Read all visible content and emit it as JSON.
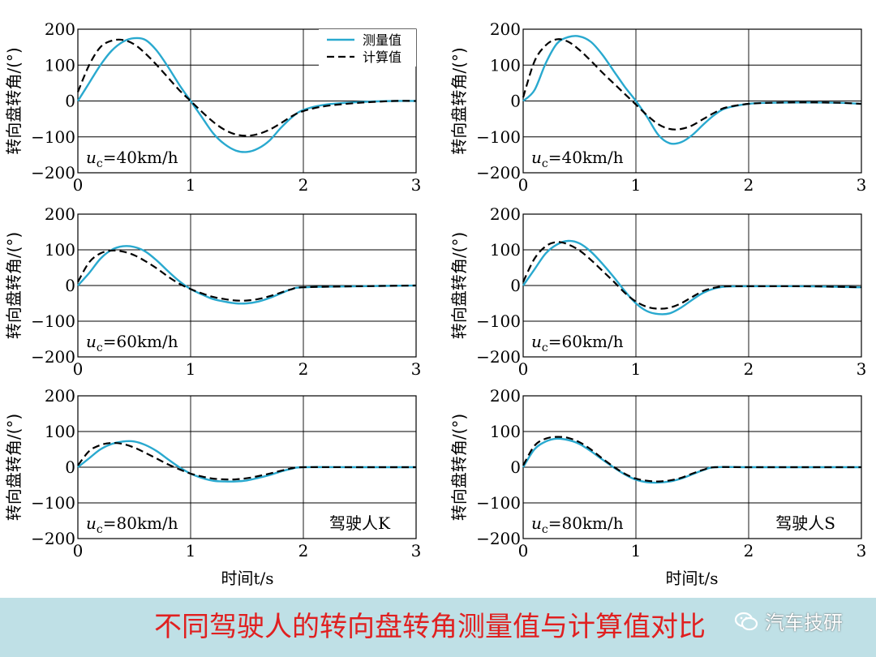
{
  "chart_data": [
    {
      "type": "line",
      "panel": "K-40",
      "ylabel": "转向盘转角/(°)",
      "annotation": "uc=40km/h",
      "speed_label": "=40km/h",
      "xlim": [
        0,
        3
      ],
      "ylim": [
        -200,
        200
      ],
      "xticks": [
        "0",
        "1",
        "2",
        "3"
      ],
      "yticks": [
        "200",
        "100",
        "0",
        "−100",
        "−200"
      ],
      "series": [
        {
          "name": "测量值",
          "style": "solid",
          "x": [
            0,
            0.1,
            0.2,
            0.3,
            0.4,
            0.5,
            0.6,
            0.7,
            0.8,
            0.9,
            1.0,
            1.1,
            1.2,
            1.3,
            1.4,
            1.5,
            1.6,
            1.7,
            1.8,
            1.9,
            2.0,
            2.2,
            2.5,
            2.8,
            3.0
          ],
          "y": [
            0,
            50,
            100,
            140,
            165,
            175,
            170,
            140,
            95,
            45,
            0,
            -45,
            -90,
            -120,
            -138,
            -142,
            -132,
            -110,
            -75,
            -45,
            -25,
            -10,
            -3,
            0,
            0
          ]
        },
        {
          "name": "计算值",
          "style": "dashed",
          "x": [
            0,
            0.1,
            0.2,
            0.3,
            0.4,
            0.5,
            0.6,
            0.7,
            0.8,
            0.9,
            1.0,
            1.1,
            1.2,
            1.3,
            1.4,
            1.5,
            1.6,
            1.7,
            1.8,
            1.9,
            2.0,
            2.2,
            2.5,
            2.8,
            3.0
          ],
          "y": [
            25,
            100,
            150,
            168,
            170,
            158,
            132,
            100,
            65,
            30,
            0,
            -30,
            -58,
            -80,
            -93,
            -97,
            -92,
            -80,
            -62,
            -42,
            -28,
            -14,
            -5,
            0,
            0
          ]
        }
      ],
      "legend": [
        "测量值",
        "计算值"
      ],
      "legend_position": "top-right"
    },
    {
      "type": "line",
      "panel": "S-40",
      "ylabel": "转向盘转角/(°)",
      "annotation": "uc=40km/h",
      "speed_label": "=40km/h",
      "xlim": [
        0,
        3
      ],
      "ylim": [
        -200,
        200
      ],
      "xticks": [
        "0",
        "1",
        "2",
        "3"
      ],
      "yticks": [
        "200",
        "100",
        "0",
        "−100",
        "−200"
      ],
      "series": [
        {
          "name": "测量值",
          "style": "solid",
          "x": [
            0,
            0.1,
            0.2,
            0.3,
            0.4,
            0.5,
            0.6,
            0.7,
            0.8,
            0.9,
            1.0,
            1.1,
            1.2,
            1.3,
            1.4,
            1.5,
            1.6,
            1.7,
            1.8,
            2.0,
            2.2,
            2.5,
            2.8,
            3.0
          ],
          "y": [
            0,
            30,
            105,
            160,
            178,
            180,
            165,
            130,
            85,
            40,
            0,
            -45,
            -95,
            -118,
            -115,
            -95,
            -65,
            -38,
            -20,
            -8,
            -5,
            -4,
            -5,
            -8
          ]
        },
        {
          "name": "计算值",
          "style": "dashed",
          "x": [
            0,
            0.1,
            0.2,
            0.3,
            0.4,
            0.5,
            0.6,
            0.7,
            0.8,
            0.9,
            1.0,
            1.1,
            1.2,
            1.3,
            1.4,
            1.5,
            1.6,
            1.7,
            1.8,
            2.0,
            2.2,
            2.5,
            2.8,
            3.0
          ],
          "y": [
            10,
            110,
            155,
            172,
            165,
            142,
            112,
            80,
            50,
            20,
            -10,
            -40,
            -65,
            -78,
            -78,
            -68,
            -50,
            -32,
            -18,
            -8,
            -5,
            -4,
            -5,
            -8
          ]
        }
      ]
    },
    {
      "type": "line",
      "panel": "K-60",
      "ylabel": "转向盘转角/(°)",
      "annotation": "uc=60km/h",
      "speed_label": "=60km/h",
      "xlim": [
        0,
        3
      ],
      "ylim": [
        -200,
        200
      ],
      "xticks": [
        "0",
        "1",
        "2",
        "3"
      ],
      "yticks": [
        "200",
        "100",
        "0",
        "−100",
        "−200"
      ],
      "series": [
        {
          "name": "测量值",
          "style": "solid",
          "x": [
            0,
            0.1,
            0.2,
            0.3,
            0.4,
            0.5,
            0.6,
            0.7,
            0.8,
            0.9,
            1.0,
            1.1,
            1.2,
            1.3,
            1.4,
            1.5,
            1.6,
            1.7,
            1.8,
            1.9,
            2.0,
            2.5,
            3.0
          ],
          "y": [
            0,
            35,
            75,
            100,
            110,
            108,
            95,
            70,
            40,
            12,
            -10,
            -25,
            -38,
            -45,
            -50,
            -50,
            -45,
            -35,
            -22,
            -10,
            -5,
            -2,
            0
          ]
        },
        {
          "name": "计算值",
          "style": "dashed",
          "x": [
            0,
            0.1,
            0.2,
            0.3,
            0.4,
            0.5,
            0.6,
            0.7,
            0.8,
            0.9,
            1.0,
            1.1,
            1.2,
            1.3,
            1.4,
            1.5,
            1.6,
            1.7,
            1.8,
            1.9,
            2.0,
            2.5,
            3.0
          ],
          "y": [
            10,
            65,
            90,
            98,
            95,
            85,
            68,
            48,
            25,
            5,
            -10,
            -22,
            -32,
            -38,
            -42,
            -42,
            -38,
            -30,
            -20,
            -10,
            -5,
            -2,
            0
          ]
        }
      ]
    },
    {
      "type": "line",
      "panel": "S-60",
      "ylabel": "转向盘转角/(°)",
      "annotation": "uc=60km/h",
      "speed_label": "=60km/h",
      "xlim": [
        0,
        3
      ],
      "ylim": [
        -200,
        200
      ],
      "xticks": [
        "0",
        "1",
        "2",
        "3"
      ],
      "yticks": [
        "200",
        "100",
        "0",
        "−100",
        "−200"
      ],
      "series": [
        {
          "name": "测量值",
          "style": "solid",
          "x": [
            0,
            0.1,
            0.2,
            0.3,
            0.4,
            0.5,
            0.6,
            0.7,
            0.8,
            0.9,
            1.0,
            1.1,
            1.2,
            1.3,
            1.4,
            1.5,
            1.6,
            1.7,
            1.8,
            2.0,
            2.5,
            3.0
          ],
          "y": [
            0,
            45,
            90,
            115,
            125,
            118,
            95,
            62,
            25,
            -15,
            -50,
            -72,
            -80,
            -78,
            -62,
            -40,
            -20,
            -8,
            -3,
            -2,
            -2,
            -5
          ]
        },
        {
          "name": "计算值",
          "style": "dashed",
          "x": [
            0,
            0.1,
            0.2,
            0.3,
            0.4,
            0.5,
            0.6,
            0.7,
            0.8,
            0.9,
            1.0,
            1.1,
            1.2,
            1.3,
            1.4,
            1.5,
            1.6,
            1.7,
            1.8,
            2.0,
            2.5,
            3.0
          ],
          "y": [
            10,
            75,
            110,
            122,
            115,
            98,
            72,
            42,
            12,
            -20,
            -45,
            -60,
            -65,
            -62,
            -50,
            -32,
            -15,
            -6,
            -2,
            -2,
            -2,
            -5
          ]
        }
      ]
    },
    {
      "type": "line",
      "panel": "K-80",
      "ylabel": "转向盘转角/(°)",
      "annotation": "uc=80km/h",
      "speed_label": "=80km/h",
      "driver": "驾驶人K",
      "xlim": [
        0,
        3
      ],
      "ylim": [
        -200,
        200
      ],
      "xticks": [
        "0",
        "1",
        "2",
        "3"
      ],
      "yticks": [
        "200",
        "100",
        "0",
        "−100",
        "−200"
      ],
      "series": [
        {
          "name": "测量值",
          "style": "solid",
          "x": [
            0,
            0.1,
            0.2,
            0.3,
            0.4,
            0.5,
            0.6,
            0.7,
            0.8,
            0.9,
            1.0,
            1.1,
            1.2,
            1.3,
            1.4,
            1.5,
            1.6,
            1.7,
            1.8,
            1.9,
            2.0,
            2.5,
            3.0
          ],
          "y": [
            0,
            25,
            50,
            65,
            72,
            72,
            62,
            45,
            22,
            0,
            -18,
            -30,
            -38,
            -40,
            -40,
            -37,
            -30,
            -22,
            -12,
            -4,
            0,
            0,
            0
          ]
        },
        {
          "name": "计算值",
          "style": "dashed",
          "x": [
            0,
            0.1,
            0.2,
            0.3,
            0.4,
            0.5,
            0.6,
            0.7,
            0.8,
            0.9,
            1.0,
            1.1,
            1.2,
            1.3,
            1.4,
            1.5,
            1.6,
            1.7,
            1.8,
            1.9,
            2.0,
            2.5,
            3.0
          ],
          "y": [
            5,
            45,
            62,
            68,
            65,
            55,
            40,
            24,
            8,
            -6,
            -18,
            -26,
            -32,
            -34,
            -34,
            -31,
            -25,
            -18,
            -10,
            -3,
            0,
            0,
            0
          ]
        }
      ]
    },
    {
      "type": "line",
      "panel": "S-80",
      "ylabel": "转向盘转角/(°)",
      "annotation": "uc=80km/h",
      "speed_label": "=80km/h",
      "driver": "驾驶人S",
      "xlim": [
        0,
        3
      ],
      "ylim": [
        -200,
        200
      ],
      "xticks": [
        "0",
        "1",
        "2",
        "3"
      ],
      "yticks": [
        "200",
        "100",
        "0",
        "−100",
        "−200"
      ],
      "series": [
        {
          "name": "测量值",
          "style": "solid",
          "x": [
            0,
            0.1,
            0.2,
            0.3,
            0.4,
            0.5,
            0.6,
            0.7,
            0.8,
            0.9,
            1.0,
            1.1,
            1.2,
            1.3,
            1.4,
            1.5,
            1.6,
            1.7,
            2.0,
            2.5,
            3.0
          ],
          "y": [
            0,
            50,
            72,
            80,
            76,
            65,
            45,
            22,
            0,
            -20,
            -35,
            -42,
            -43,
            -40,
            -32,
            -20,
            -8,
            0,
            0,
            0,
            0
          ]
        },
        {
          "name": "计算值",
          "style": "dashed",
          "x": [
            0,
            0.1,
            0.2,
            0.3,
            0.4,
            0.5,
            0.6,
            0.7,
            0.8,
            0.9,
            1.0,
            1.1,
            1.2,
            1.3,
            1.4,
            1.5,
            1.6,
            1.7,
            2.0,
            2.5,
            3.0
          ],
          "y": [
            5,
            60,
            80,
            85,
            82,
            70,
            50,
            25,
            2,
            -18,
            -32,
            -38,
            -40,
            -37,
            -30,
            -18,
            -7,
            0,
            0,
            0,
            0
          ]
        }
      ]
    }
  ],
  "xlabel_left": "时间t/s",
  "xlabel_right": "时间t/s",
  "caption": "不同驾驶人的转向盘转角测量值与计算值对比",
  "watermark": "汽车技研",
  "colors": {
    "measured": "#29a9cf",
    "computed": "#000000",
    "caption": "#e02020",
    "band": "#bfe0e6"
  }
}
